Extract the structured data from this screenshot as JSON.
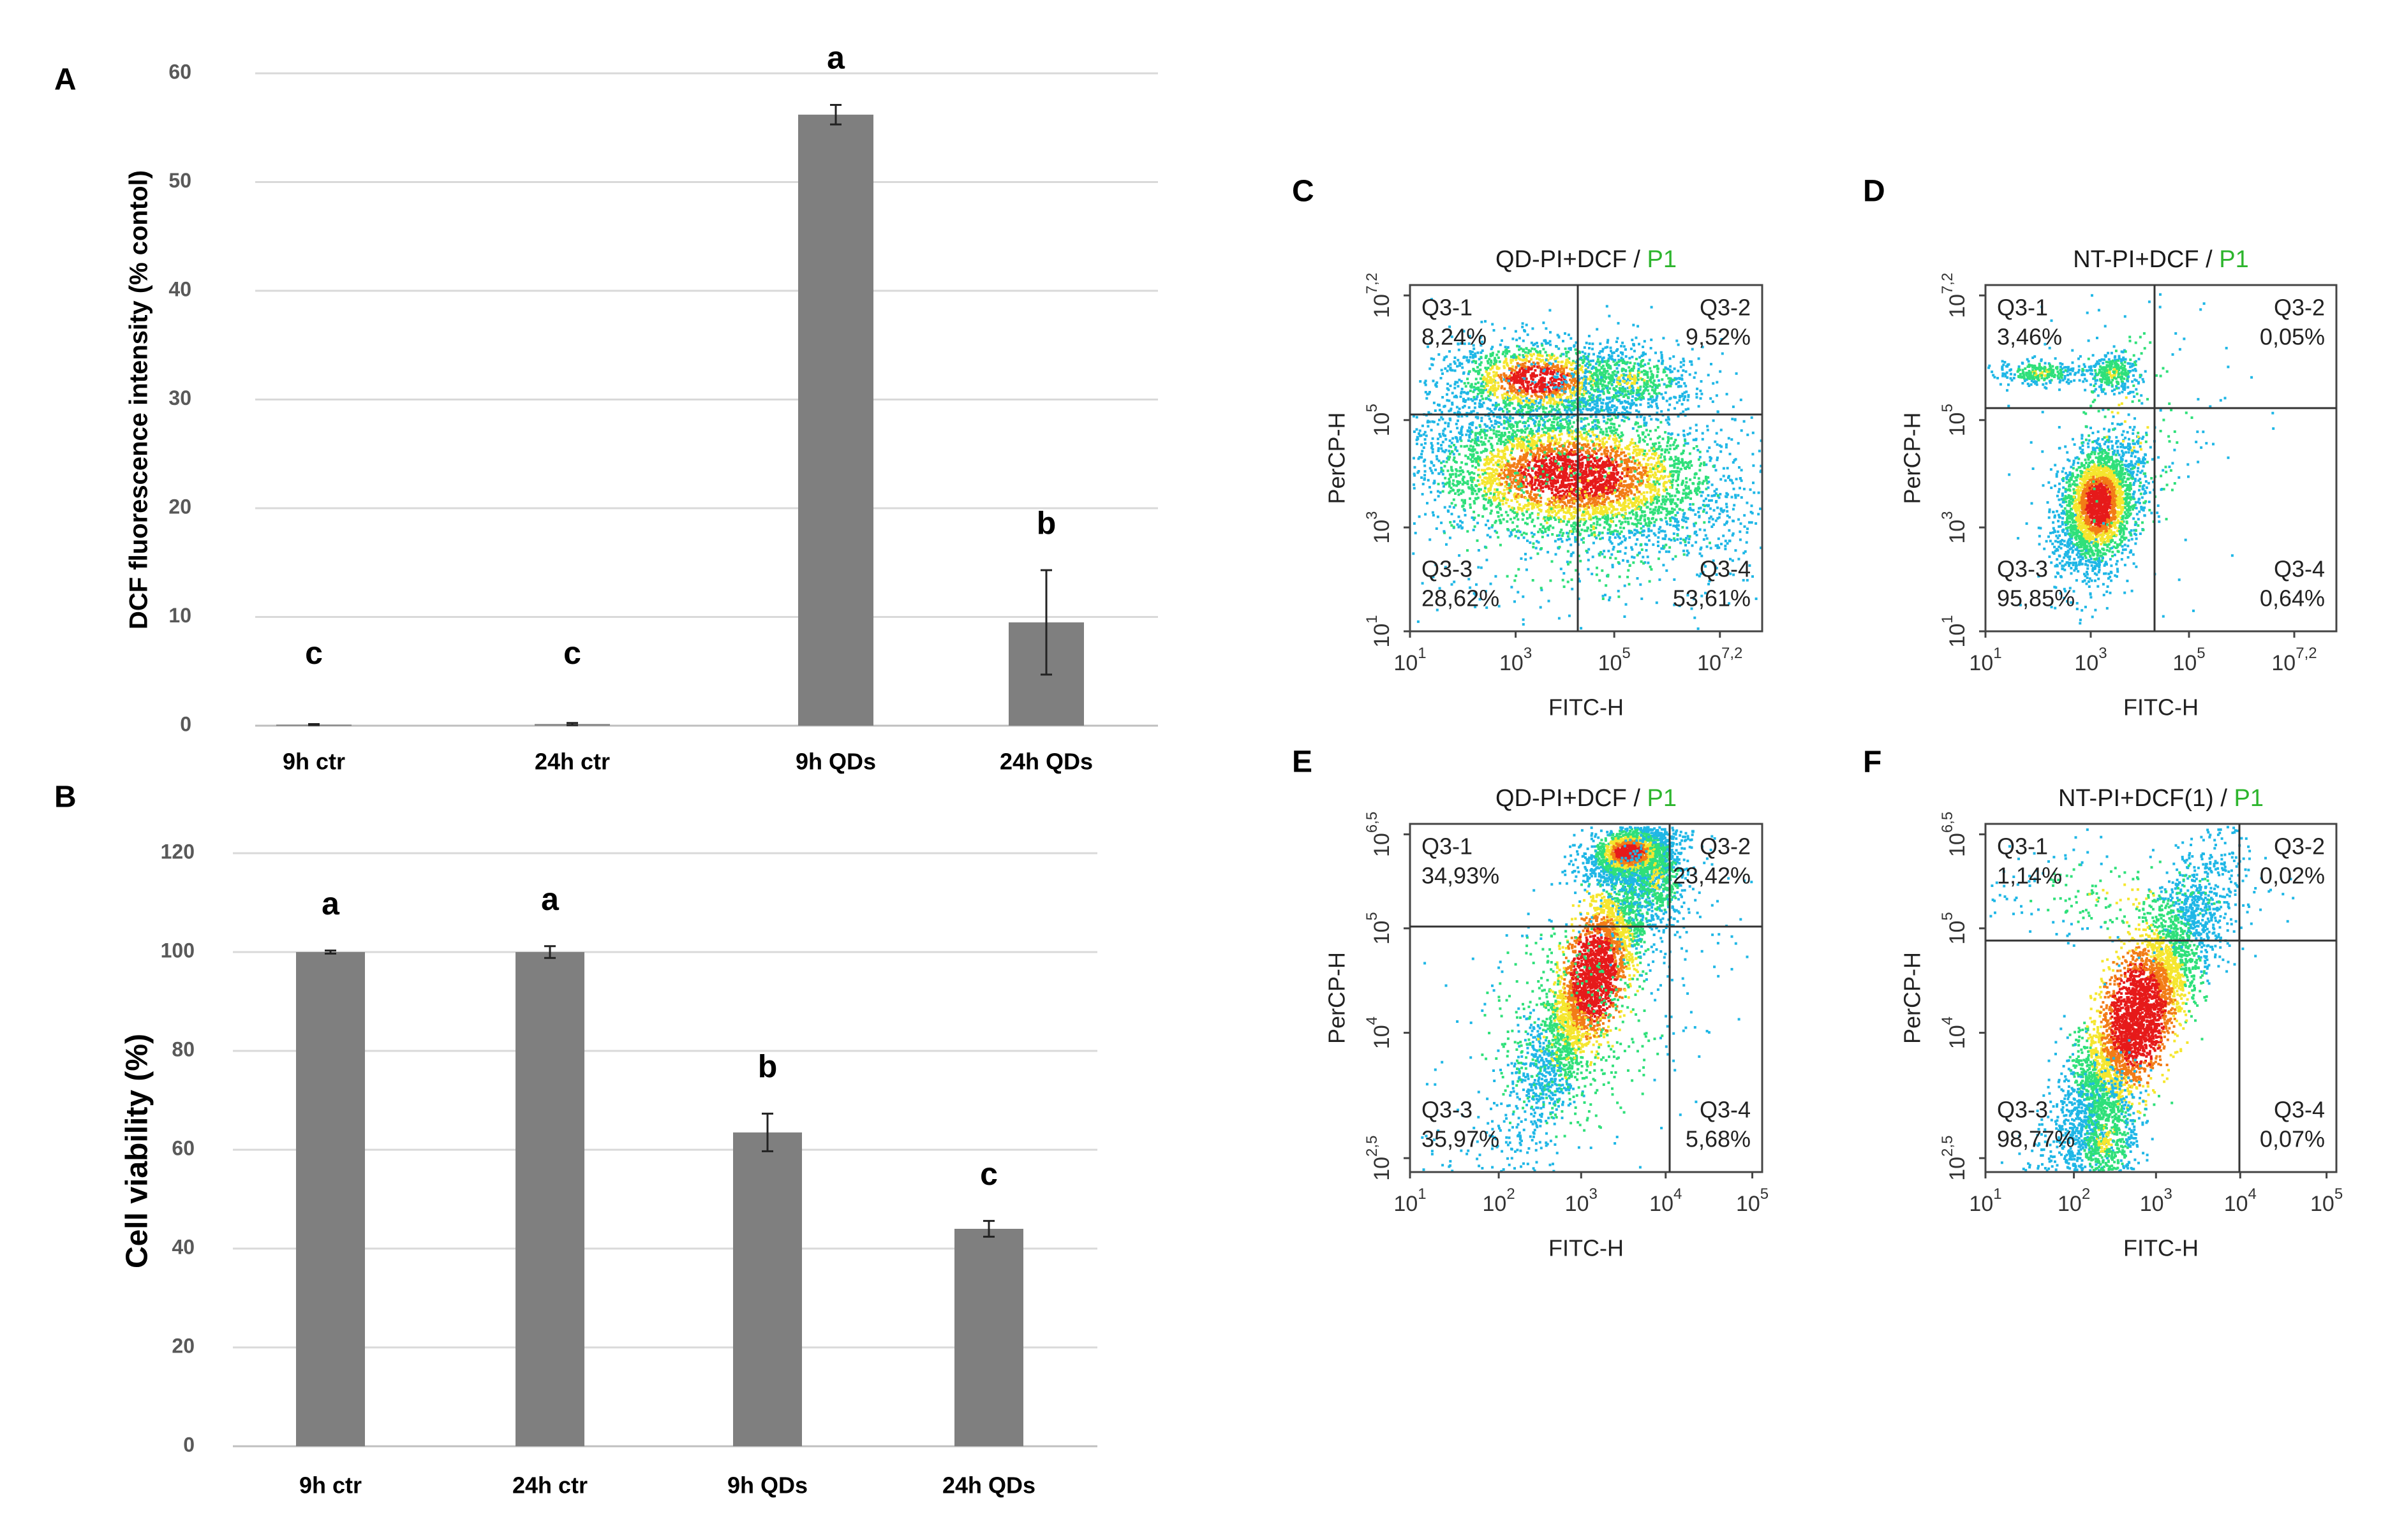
{
  "chart_data": [
    {
      "panel": "A",
      "type": "bar",
      "categories": [
        "9h ctr",
        "24h ctr",
        "9h QDs",
        "24h QDs"
      ],
      "values": [
        0.1,
        0.15,
        56.2,
        9.5
      ],
      "errors": [
        0.05,
        0.1,
        0.9,
        4.8
      ],
      "significance": [
        "c",
        "c",
        "a",
        "b"
      ],
      "ylabel": "DCF fluorescence intensity (% contol)",
      "xlabel": "",
      "ylim": [
        0,
        60
      ],
      "yticks": [
        "0",
        "10",
        "20",
        "30",
        "40",
        "50",
        "60"
      ],
      "bar_color": "#7f7f7f"
    },
    {
      "panel": "B",
      "type": "bar",
      "categories": [
        "9h ctr",
        "24h ctr",
        "9h QDs",
        "24h QDs"
      ],
      "values": [
        100,
        100,
        63.5,
        44
      ],
      "errors": [
        0.3,
        1.2,
        3.8,
        1.6
      ],
      "significance": [
        "a",
        "a",
        "b",
        "c"
      ],
      "ylabel": "Cell viability (%)",
      "xlabel": "",
      "ylim": [
        0,
        120
      ],
      "yticks": [
        "0",
        "20",
        "40",
        "60",
        "80",
        "100",
        "120"
      ],
      "bar_color": "#7f7f7f"
    },
    {
      "panel": "C",
      "type": "scatter",
      "title": "QD-PI+DCF",
      "gate": "P1",
      "xlabel": "FITC-H",
      "ylabel": "PerCP-H",
      "xticks": [
        {
          "b": "10",
          "e": "1"
        },
        {
          "b": "10",
          "e": "3"
        },
        {
          "b": "10",
          "e": "5"
        },
        {
          "b": "10",
          "e": "7,2"
        }
      ],
      "yticks": [
        {
          "b": "10",
          "e": "1"
        },
        {
          "b": "10",
          "e": "3"
        },
        {
          "b": "10",
          "e": "5"
        },
        {
          "b": "10",
          "e": "7,2"
        }
      ],
      "quadrants": [
        {
          "name": "Q3-1",
          "value": "8,24%"
        },
        {
          "name": "Q3-2",
          "value": "9,52%"
        },
        {
          "name": "Q3-3",
          "value": "28,62%"
        },
        {
          "name": "Q3-4",
          "value": "53,61%"
        }
      ]
    },
    {
      "panel": "D",
      "type": "scatter",
      "title": "NT-PI+DCF",
      "gate": "P1",
      "xlabel": "FITC-H",
      "ylabel": "PerCP-H",
      "xticks": [
        {
          "b": "10",
          "e": "1"
        },
        {
          "b": "10",
          "e": "3"
        },
        {
          "b": "10",
          "e": "5"
        },
        {
          "b": "10",
          "e": "7,2"
        }
      ],
      "yticks": [
        {
          "b": "10",
          "e": "1"
        },
        {
          "b": "10",
          "e": "3"
        },
        {
          "b": "10",
          "e": "5"
        },
        {
          "b": "10",
          "e": "7,2"
        }
      ],
      "quadrants": [
        {
          "name": "Q3-1",
          "value": "3,46%"
        },
        {
          "name": "Q3-2",
          "value": "0,05%"
        },
        {
          "name": "Q3-3",
          "value": "95,85%"
        },
        {
          "name": "Q3-4",
          "value": "0,64%"
        }
      ]
    },
    {
      "panel": "E",
      "type": "scatter",
      "title": "QD-PI+DCF",
      "gate": "P1",
      "xlabel": "FITC-H",
      "ylabel": "PerCP-H",
      "xticks": [
        {
          "b": "10",
          "e": "1"
        },
        {
          "b": "10",
          "e": "2"
        },
        {
          "b": "10",
          "e": "3"
        },
        {
          "b": "10",
          "e": "4"
        },
        {
          "b": "10",
          "e": "5"
        }
      ],
      "yticks": [
        {
          "b": "10",
          "e": "2,5"
        },
        {
          "b": "10",
          "e": "4"
        },
        {
          "b": "10",
          "e": "5"
        },
        {
          "b": "10",
          "e": "6,5"
        }
      ],
      "quadrants": [
        {
          "name": "Q3-1",
          "value": "34,93%"
        },
        {
          "name": "Q3-2",
          "value": "23,42%"
        },
        {
          "name": "Q3-3",
          "value": "35,97%"
        },
        {
          "name": "Q3-4",
          "value": "5,68%"
        }
      ]
    },
    {
      "panel": "F",
      "type": "scatter",
      "title": "NT-PI+DCF(1)",
      "gate": "P1",
      "xlabel": "FITC-H",
      "ylabel": "PerCP-H",
      "xticks": [
        {
          "b": "10",
          "e": "1"
        },
        {
          "b": "10",
          "e": "2"
        },
        {
          "b": "10",
          "e": "3"
        },
        {
          "b": "10",
          "e": "4"
        },
        {
          "b": "10",
          "e": "5"
        }
      ],
      "yticks": [
        {
          "b": "10",
          "e": "2,5"
        },
        {
          "b": "10",
          "e": "4"
        },
        {
          "b": "10",
          "e": "5"
        },
        {
          "b": "10",
          "e": "6,5"
        }
      ],
      "quadrants": [
        {
          "name": "Q3-1",
          "value": "1,14%"
        },
        {
          "name": "Q3-2",
          "value": "0,02%"
        },
        {
          "name": "Q3-3",
          "value": "98,77%"
        },
        {
          "name": "Q3-4",
          "value": "0,07%"
        }
      ]
    }
  ]
}
